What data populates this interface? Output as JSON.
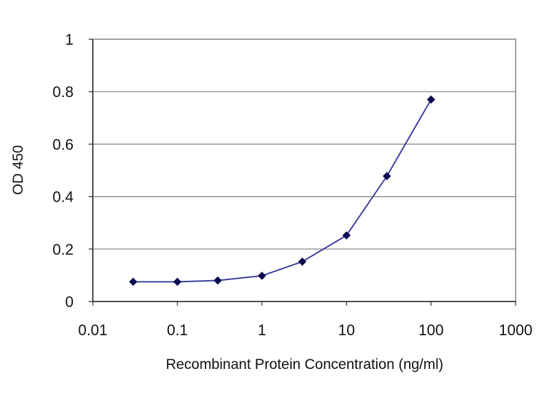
{
  "chart_data": {
    "type": "line",
    "xscale": "log",
    "xlabel": "Recombinant Protein Concentration (ng/ml)",
    "ylabel": "OD 450",
    "xlim": [
      0.01,
      1000
    ],
    "ylim": [
      0,
      1
    ],
    "xticks": [
      0.01,
      0.1,
      1,
      10,
      100,
      1000
    ],
    "xtick_labels": [
      "0.01",
      "0.1",
      "1",
      "10",
      "100",
      "1000"
    ],
    "yticks": [
      0,
      0.2,
      0.4,
      0.6,
      0.8,
      1
    ],
    "ytick_labels": [
      "0",
      "0.2",
      "0.4",
      "0.6",
      "0.8",
      "1"
    ],
    "grid": "horizontal",
    "legend": "none",
    "series": [
      {
        "x": [
          0.03,
          0.1,
          0.3,
          1,
          3,
          10,
          30,
          100
        ],
        "y": [
          0.075,
          0.075,
          0.08,
          0.098,
          0.152,
          0.252,
          0.478,
          0.77
        ],
        "color": "#3b3b9e",
        "marker_color": "#0a0a50"
      }
    ]
  }
}
